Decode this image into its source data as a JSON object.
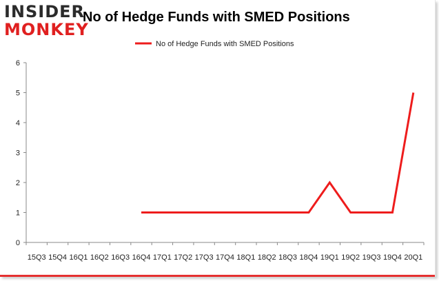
{
  "logo": {
    "line1": "INSIDER",
    "line2": "MONKEY"
  },
  "chart_data": {
    "type": "line",
    "title": "No of Hedge Funds with SMED Positions",
    "xlabel": "",
    "ylabel": "",
    "categories": [
      "15Q3",
      "15Q4",
      "16Q1",
      "16Q2",
      "16Q3",
      "16Q4",
      "17Q1",
      "17Q2",
      "17Q3",
      "17Q4",
      "18Q1",
      "18Q2",
      "18Q3",
      "18Q4",
      "19Q1",
      "19Q2",
      "19Q3",
      "19Q4",
      "20Q1"
    ],
    "series": [
      {
        "name": "No of Hedge Funds with SMED Positions",
        "color": "#ee1c1c",
        "values": [
          null,
          null,
          null,
          null,
          null,
          1,
          1,
          1,
          1,
          1,
          1,
          1,
          1,
          1,
          2,
          1,
          1,
          1,
          5
        ]
      }
    ],
    "ylim": [
      0,
      6
    ],
    "yticks": [
      0,
      1,
      2,
      3,
      4,
      5,
      6
    ],
    "grid": false,
    "legend": "top-center"
  }
}
